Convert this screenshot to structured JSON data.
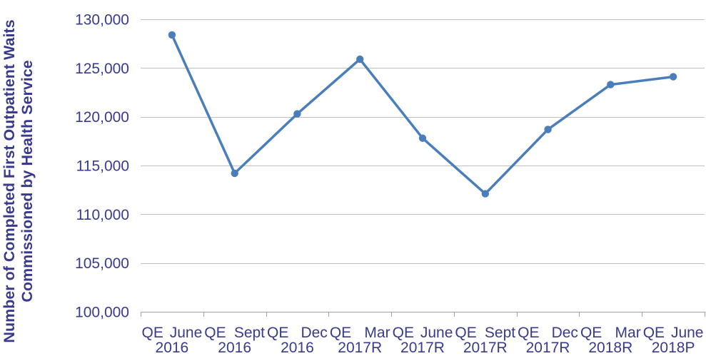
{
  "chart_data": {
    "type": "line",
    "ylabel": "Number of Completed First Outpatient Waits Commissioned by Health Service",
    "categories": [
      "QE June 2016",
      "QE Sept 2016",
      "QE Dec 2016",
      "QE Mar 2017R",
      "QE June 2017R",
      "QE Sept 2017R",
      "QE Dec 2017R",
      "QE Mar 2018R",
      "QE June 2018P"
    ],
    "values": [
      128400,
      114200,
      120300,
      125900,
      117800,
      112100,
      118700,
      123300,
      124100
    ],
    "ylim": [
      100000,
      130000
    ],
    "yticks": [
      100000,
      105000,
      110000,
      115000,
      120000,
      125000,
      130000
    ],
    "ytick_labels": [
      "100,000",
      "105,000",
      "110,000",
      "115,000",
      "120,000",
      "125,000",
      "130,000"
    ],
    "grid": true,
    "legend": "none",
    "colors": {
      "series": "#4a7ebb",
      "text": "#3a3a8c",
      "grid": "#c0c0c0",
      "axis": "#a0a0a0"
    }
  }
}
